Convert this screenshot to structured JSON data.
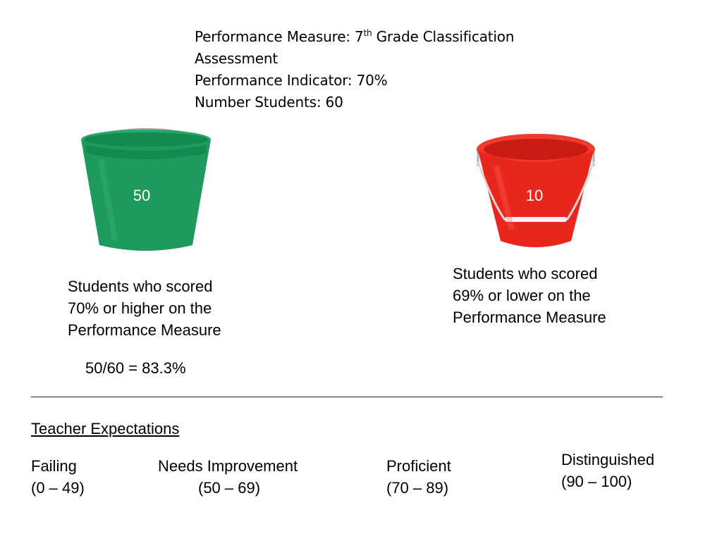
{
  "header": {
    "measure_prefix": "Performance Measure: 7",
    "measure_sup": "th",
    "measure_suffix": " Grade Classification Assessment",
    "indicator": "Performance Indicator: 70%",
    "students": "Number Students: 60"
  },
  "buckets": {
    "green": {
      "count": "50",
      "color": "#1d9a5c",
      "icon": "green-bucket-icon"
    },
    "red": {
      "count": "10",
      "color": "#e8261e",
      "icon": "red-bucket-icon"
    }
  },
  "captions": {
    "above": [
      "Students who scored",
      "70% or higher on the",
      "Performance Measure"
    ],
    "below": [
      "Students who scored",
      "69% or lower on the",
      "Performance Measure"
    ]
  },
  "ratio": "50/60 = 83.3%",
  "expectations": {
    "title": "Teacher Expectations",
    "levels": [
      {
        "name": "Failing",
        "range": "(0 – 49)"
      },
      {
        "name": "Needs Improvement",
        "range": "(50 – 69)"
      },
      {
        "name": "Proficient",
        "range": "(70 – 89)"
      },
      {
        "name": "Distinguished",
        "range": "(90 – 100)"
      }
    ]
  }
}
